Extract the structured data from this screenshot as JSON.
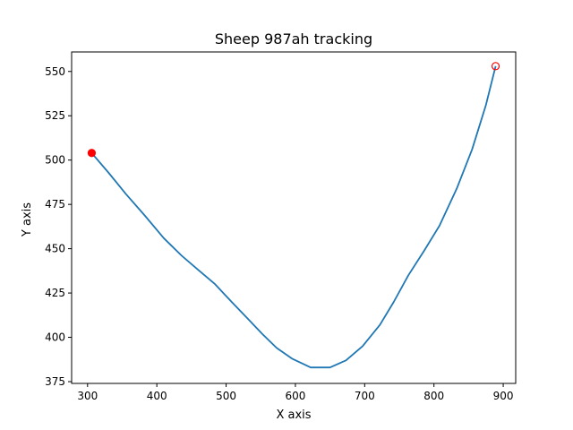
{
  "chart_data": {
    "type": "line",
    "title": "Sheep 987ah tracking",
    "xlabel": "X axis",
    "ylabel": "Y axis",
    "xlim": [
      277,
      918
    ],
    "ylim": [
      374,
      561
    ],
    "xticks": [
      300,
      400,
      500,
      600,
      700,
      800,
      900
    ],
    "yticks": [
      375,
      400,
      425,
      450,
      475,
      500,
      525,
      550
    ],
    "grid": false,
    "series": [
      {
        "color": "#1f77b4",
        "x": [
          306,
          330,
          355,
          382,
          410,
          436,
          460,
          484,
          508,
          530,
          552,
          573,
          595,
          622,
          650,
          673,
          697,
          722,
          742,
          763,
          786,
          808,
          833,
          855,
          875,
          889
        ],
        "y": [
          504,
          493,
          481,
          469,
          456,
          446,
          438,
          430,
          420,
          411,
          402,
          394,
          388,
          383,
          383,
          387,
          395,
          407,
          420,
          435,
          449,
          463,
          484,
          506,
          531,
          553
        ]
      }
    ],
    "markers": [
      {
        "x": 306,
        "y": 504,
        "style": "filled",
        "color": "#ff0000"
      },
      {
        "x": 889,
        "y": 553,
        "style": "hollow",
        "color": "#ff0000"
      }
    ]
  }
}
